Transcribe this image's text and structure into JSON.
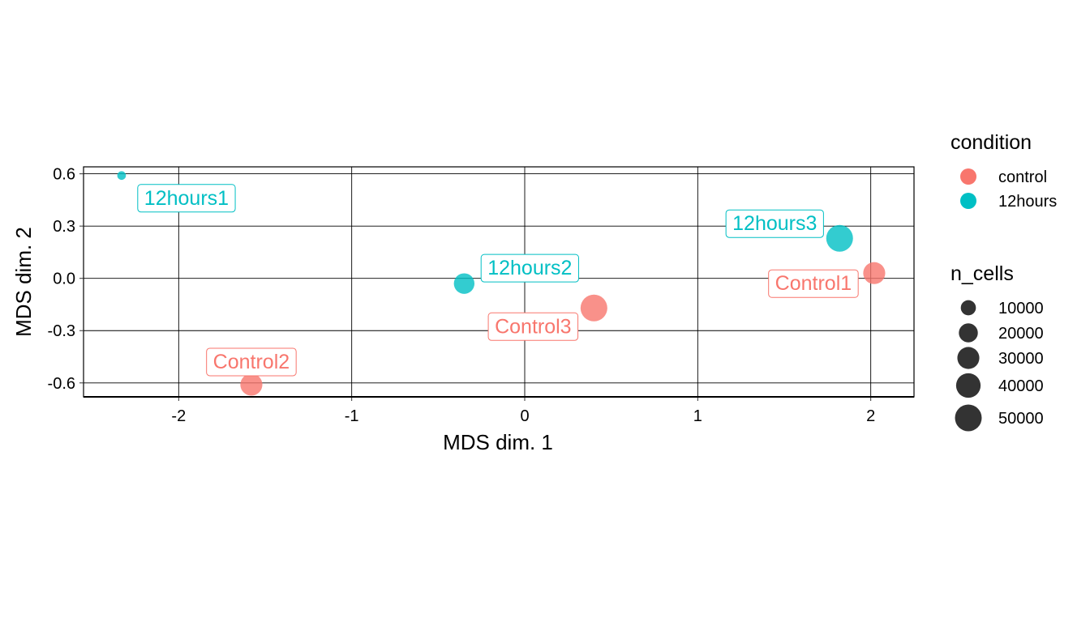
{
  "chart_data": {
    "type": "scatter",
    "xlabel": "MDS dim. 1",
    "ylabel": "MDS dim. 2",
    "xlim": [
      -2.55,
      2.25
    ],
    "ylim": [
      -0.68,
      0.64
    ],
    "x_ticks": [
      -2,
      -1,
      0,
      1,
      2
    ],
    "y_ticks": [
      -0.6,
      -0.3,
      0.0,
      0.3,
      0.6
    ],
    "x_tick_labels": [
      "-2",
      "-1",
      "0",
      "1",
      "2"
    ],
    "y_tick_labels": [
      "-0.6",
      "-0.3",
      "0.0",
      "0.3",
      "0.6"
    ],
    "grid": true,
    "colors": {
      "control": "#F8766D",
      "12hours": "#00BFC4"
    },
    "points": [
      {
        "label": "Control1",
        "condition": "control",
        "x": 2.02,
        "y": 0.03,
        "n_cells": 30000
      },
      {
        "label": "Control2",
        "condition": "control",
        "x": -1.58,
        "y": -0.61,
        "n_cells": 30000
      },
      {
        "label": "Control3",
        "condition": "control",
        "x": 0.4,
        "y": -0.17,
        "n_cells": 50000
      },
      {
        "label": "12hours1",
        "condition": "12hours",
        "x": -2.33,
        "y": 0.59,
        "n_cells": 1000
      },
      {
        "label": "12hours2",
        "condition": "12hours",
        "x": -0.35,
        "y": -0.03,
        "n_cells": 25000
      },
      {
        "label": "12hours3",
        "condition": "12hours",
        "x": 1.82,
        "y": 0.23,
        "n_cells": 50000
      }
    ],
    "legend": {
      "placement": "right",
      "condition_title": "condition",
      "condition_items": [
        {
          "label": "control",
          "key": "control"
        },
        {
          "label": "12hours",
          "key": "12hours"
        }
      ],
      "size_title": "n_cells",
      "size_items": [
        {
          "label": "10000",
          "value": 10000
        },
        {
          "label": "20000",
          "value": 20000
        },
        {
          "label": "30000",
          "value": 30000
        },
        {
          "label": "40000",
          "value": 40000
        },
        {
          "label": "50000",
          "value": 50000
        }
      ],
      "size_key_color": "#333333"
    }
  }
}
